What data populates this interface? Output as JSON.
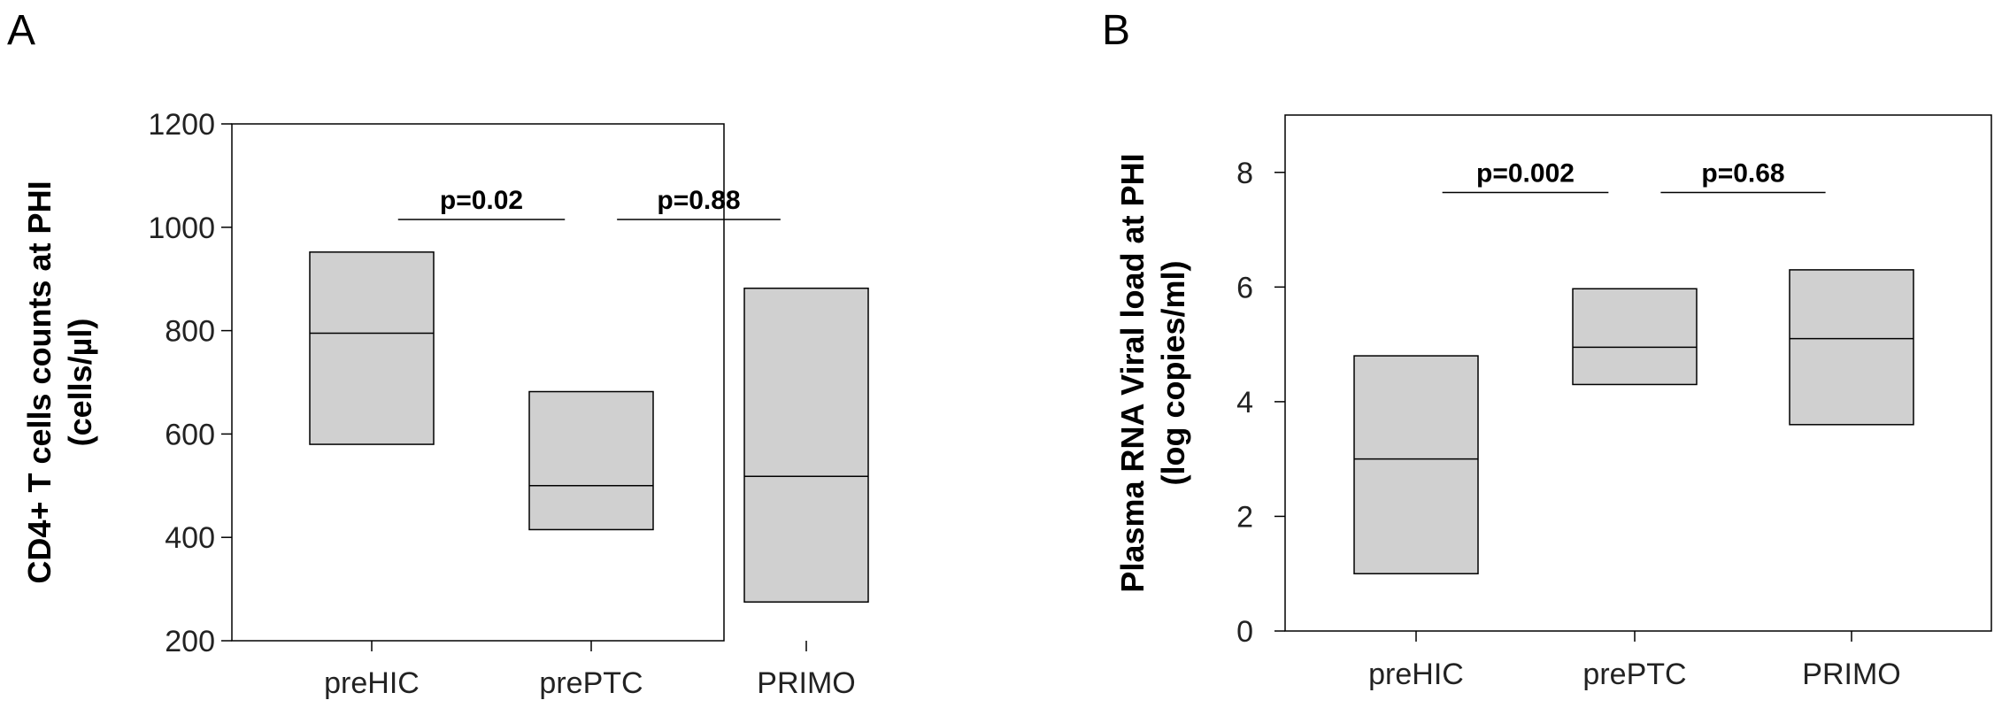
{
  "chart_data": [
    {
      "type": "box",
      "panel_label": "A",
      "ylabel_line1": "CD4+ T cells counts at PHI",
      "ylabel_line2": "(cells/µl)",
      "ylim": [
        200,
        1200
      ],
      "yticks": [
        "200",
        "400",
        "600",
        "800",
        "1000",
        "1200"
      ],
      "ytick_values": [
        200,
        400,
        600,
        800,
        1000,
        1200
      ],
      "categories": [
        "preHIC",
        "prePTC",
        "PRIMO"
      ],
      "boxes": [
        {
          "q1": 580,
          "median": 795,
          "q3": 952
        },
        {
          "q1": 415,
          "median": 500,
          "q3": 682
        },
        {
          "q1": 275,
          "median": 518,
          "q3": 882
        }
      ],
      "comparisons": [
        {
          "label": "p=0.02",
          "from": "preHIC",
          "to": "prePTC",
          "y": 1015
        },
        {
          "label": "p=0.88",
          "from": "prePTC",
          "to": "PRIMO",
          "y": 1015
        }
      ],
      "box_color": "#d0d0d0"
    },
    {
      "type": "box",
      "panel_label": "B",
      "ylabel_line1": "Plasma RNA Viral load at PHI",
      "ylabel_line2": "(log copies/ml)",
      "ylim": [
        0,
        9
      ],
      "yticks": [
        "0",
        "2",
        "4",
        "6",
        "8"
      ],
      "ytick_values": [
        0,
        2,
        4,
        6,
        8
      ],
      "categories": [
        "preHIC",
        "prePTC",
        "PRIMO"
      ],
      "boxes": [
        {
          "q1": 1.0,
          "median": 3.0,
          "q3": 4.8
        },
        {
          "q1": 4.3,
          "median": 4.95,
          "q3": 5.97
        },
        {
          "q1": 3.6,
          "median": 5.1,
          "q3": 6.3
        }
      ],
      "comparisons": [
        {
          "label": "p=0.002",
          "from": "preHIC",
          "to": "prePTC",
          "y": 7.65
        },
        {
          "label": "p=0.68",
          "from": "prePTC",
          "to": "PRIMO",
          "y": 7.65
        }
      ],
      "box_color": "#d0d0d0"
    }
  ]
}
